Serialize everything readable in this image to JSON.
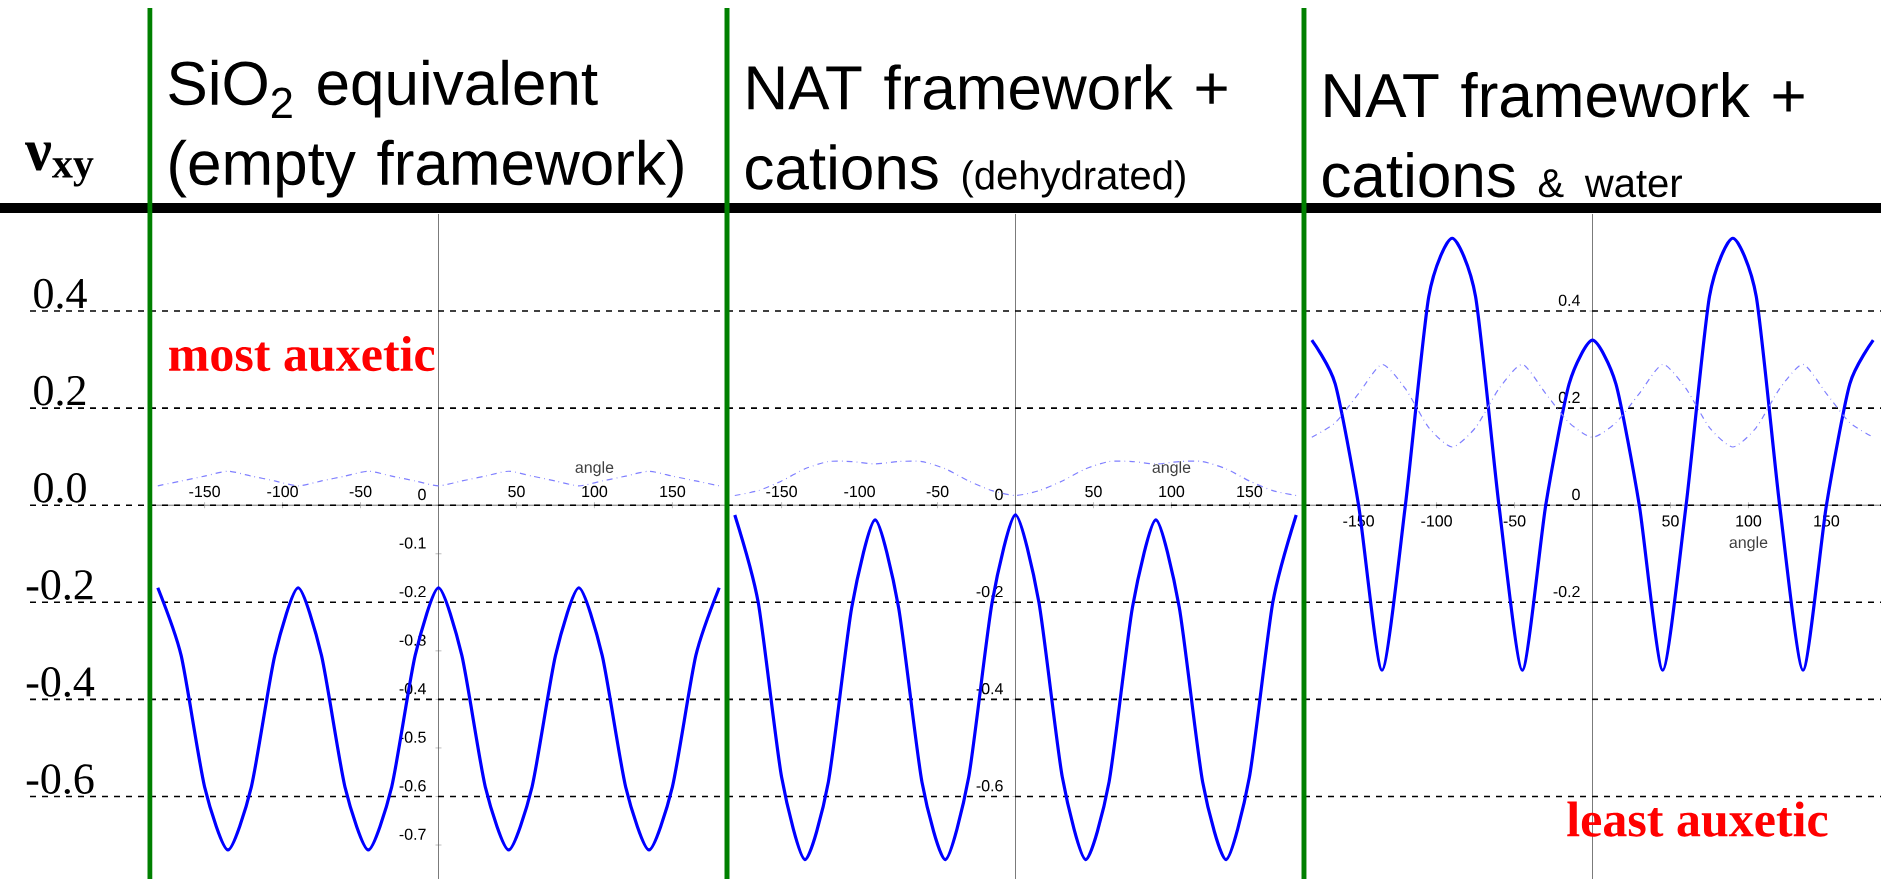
{
  "chart_data": [
    {
      "type": "line",
      "title": "SiO$_{2}$ equivalent (empty framework)",
      "xlabel": "angle",
      "ylabel": "ν$_{xy}$",
      "x": [
        -180,
        -165,
        -150,
        -135,
        -120,
        -105,
        -90,
        -75,
        -60,
        -45,
        -30,
        -15,
        0,
        15,
        30,
        45,
        60,
        75,
        90,
        105,
        120,
        135,
        150,
        165,
        180
      ],
      "series": [
        {
          "color": "#0000ff",
          "line_style": "solid",
          "values": [
            -0.17,
            -0.31,
            -0.58,
            -0.71,
            -0.58,
            -0.31,
            -0.17,
            -0.31,
            -0.58,
            -0.71,
            -0.58,
            -0.31,
            -0.17,
            -0.31,
            -0.58,
            -0.71,
            -0.58,
            -0.31,
            -0.17,
            -0.31,
            -0.58,
            -0.71,
            -0.58,
            -0.31,
            -0.17
          ]
        },
        {
          "color": "#8080ff",
          "line_style": "dashed",
          "values": [
            0.04,
            0.05,
            0.06,
            0.07,
            0.06,
            0.05,
            0.04,
            0.05,
            0.06,
            0.07,
            0.06,
            0.05,
            0.04,
            0.05,
            0.06,
            0.07,
            0.06,
            0.05,
            0.04,
            0.05,
            0.06,
            0.07,
            0.06,
            0.05,
            0.04
          ]
        }
      ],
      "xlim": [
        -185,
        185
      ],
      "ylim": [
        -0.77,
        0.6
      ],
      "xticks": [
        -150,
        -100,
        -50,
        50,
        100,
        150
      ],
      "yticks": [
        0,
        -0.1,
        -0.2,
        -0.3,
        -0.4,
        -0.5,
        -0.6,
        -0.7
      ],
      "ref_lines": [
        {
          "axis": "y",
          "value": 0.4,
          "label": "0.4",
          "color": "#000000",
          "line_style": "dashed"
        },
        {
          "axis": "y",
          "value": 0.2,
          "label": "0.2",
          "color": "#000000",
          "line_style": "dashed"
        },
        {
          "axis": "y",
          "value": 0,
          "label": "0.0",
          "color": "#000000",
          "line_style": "dashed"
        },
        {
          "axis": "y",
          "value": -0.2,
          "label": "-0.2",
          "color": "#000000",
          "line_style": "dashed"
        },
        {
          "axis": "y",
          "value": -0.4,
          "label": "-0.4",
          "color": "#000000",
          "line_style": "dashed"
        },
        {
          "axis": "y",
          "value": -0.6,
          "label": "-0.6",
          "color": "#000000",
          "line_style": "dashed"
        }
      ],
      "annotations": [
        "most auxetic"
      ]
    },
    {
      "type": "line",
      "title": "NAT framework + cations",
      "subtitle": "(dehydrated)",
      "xlabel": "angle",
      "x": [
        -180,
        -165,
        -150,
        -135,
        -120,
        -105,
        -90,
        -75,
        -60,
        -45,
        -30,
        -15,
        0,
        15,
        30,
        45,
        60,
        75,
        90,
        105,
        120,
        135,
        150,
        165,
        180
      ],
      "series": [
        {
          "color": "#0000ff",
          "line_style": "solid",
          "values": [
            -0.02,
            -0.2,
            -0.56,
            -0.73,
            -0.57,
            -0.21,
            -0.03,
            -0.21,
            -0.57,
            -0.73,
            -0.56,
            -0.2,
            -0.02,
            -0.2,
            -0.56,
            -0.73,
            -0.57,
            -0.21,
            -0.03,
            -0.21,
            -0.57,
            -0.73,
            -0.56,
            -0.2,
            -0.02
          ]
        },
        {
          "color": "#8080ff",
          "line_style": "dashed",
          "values": [
            0.02,
            0.03,
            0.05,
            0.075,
            0.09,
            0.09,
            0.085,
            0.09,
            0.09,
            0.075,
            0.05,
            0.03,
            0.02,
            0.03,
            0.05,
            0.075,
            0.09,
            0.09,
            0.085,
            0.09,
            0.09,
            0.075,
            0.05,
            0.03,
            0.02
          ]
        }
      ],
      "xlim": [
        -185,
        185
      ],
      "ylim": [
        -0.77,
        0.6
      ],
      "xticks": [
        -150,
        -100,
        -50,
        50,
        100,
        150
      ],
      "yticks": [
        0,
        -0.2,
        -0.4,
        -0.6
      ],
      "ref_lines": [
        {
          "axis": "y",
          "value": 0.4,
          "color": "#000000",
          "line_style": "dashed"
        },
        {
          "axis": "y",
          "value": 0.2,
          "color": "#000000",
          "line_style": "dashed"
        },
        {
          "axis": "y",
          "value": 0,
          "color": "#000000",
          "line_style": "dashed"
        },
        {
          "axis": "y",
          "value": -0.2,
          "color": "#000000",
          "line_style": "dashed"
        },
        {
          "axis": "y",
          "value": -0.4,
          "color": "#000000",
          "line_style": "dashed"
        },
        {
          "axis": "y",
          "value": -0.6,
          "color": "#000000",
          "line_style": "dashed"
        }
      ]
    },
    {
      "type": "line",
      "title": "NAT framework + cations",
      "subtitle": "& water",
      "xlabel": "angle",
      "x": [
        -180,
        -165,
        -150,
        -135,
        -120,
        -105,
        -90,
        -75,
        -60,
        -45,
        -30,
        -15,
        0,
        15,
        30,
        45,
        60,
        75,
        90,
        105,
        120,
        135,
        150,
        165,
        180
      ],
      "series": [
        {
          "color": "#0000ff",
          "line_style": "solid",
          "values": [
            0.34,
            0.25,
            0.0,
            -0.34,
            0.0,
            0.43,
            0.55,
            0.43,
            0.0,
            -0.34,
            0.0,
            0.25,
            0.34,
            0.25,
            0.0,
            -0.34,
            0.0,
            0.43,
            0.55,
            0.43,
            0.0,
            -0.34,
            0.0,
            0.25,
            0.34
          ]
        },
        {
          "color": "#8080ff",
          "line_style": "dashed",
          "values": [
            0.14,
            0.17,
            0.23,
            0.29,
            0.24,
            0.16,
            0.12,
            0.16,
            0.24,
            0.29,
            0.23,
            0.17,
            0.14,
            0.17,
            0.23,
            0.29,
            0.24,
            0.16,
            0.12,
            0.16,
            0.24,
            0.29,
            0.23,
            0.17,
            0.14
          ]
        }
      ],
      "xlim": [
        -185,
        185
      ],
      "ylim": [
        -0.77,
        0.6
      ],
      "xticks": [
        -150,
        -100,
        -50,
        50,
        100,
        150
      ],
      "yticks": [
        0.4,
        0.2,
        0,
        -0.2
      ],
      "ref_lines": [
        {
          "axis": "y",
          "value": 0.4,
          "color": "#000000",
          "line_style": "dashed"
        },
        {
          "axis": "y",
          "value": 0.2,
          "color": "#000000",
          "line_style": "dashed"
        },
        {
          "axis": "y",
          "value": 0,
          "color": "#000000",
          "line_style": "dashed"
        },
        {
          "axis": "y",
          "value": -0.2,
          "color": "#000000",
          "line_style": "dashed"
        },
        {
          "axis": "y",
          "value": -0.4,
          "color": "#000000",
          "line_style": "dashed"
        },
        {
          "axis": "y",
          "value": -0.6,
          "color": "#000000",
          "line_style": "dashed"
        }
      ],
      "annotations": [
        "least auxetic"
      ]
    }
  ]
}
